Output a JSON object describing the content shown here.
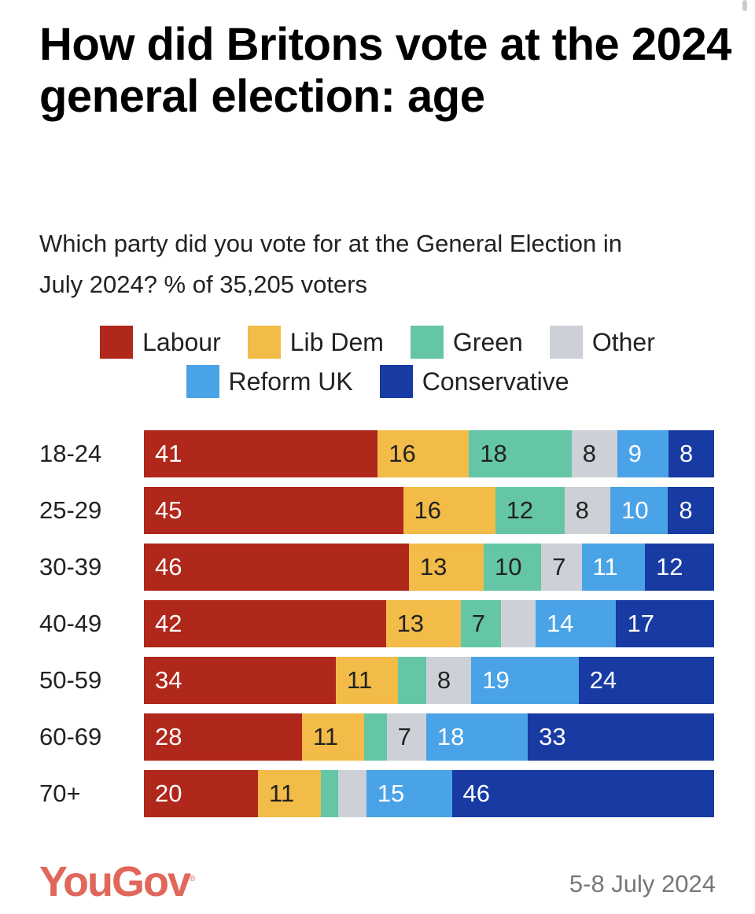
{
  "title": "How did Britons vote at the 2024 general election: age",
  "subtitle": "Which party did you vote for at the General Election in July 2024? % of 35,205 voters",
  "footer": {
    "logo": "YouGov",
    "date": "5-8 July 2024"
  },
  "chart_data": {
    "type": "bar",
    "orientation": "horizontal-stacked",
    "title": "How did Britons vote at the 2024 general election: age",
    "categories": [
      "18-24",
      "25-29",
      "30-39",
      "40-49",
      "50-59",
      "60-69",
      "70+"
    ],
    "series": [
      {
        "name": "Labour",
        "color": "#b0271b",
        "text_color": "#ffffff",
        "values": [
          41,
          45,
          46,
          42,
          34,
          28,
          20
        ],
        "labels": [
          "41",
          "45",
          "46",
          "42",
          "34",
          "28",
          "20"
        ]
      },
      {
        "name": "Lib Dem",
        "color": "#f3bb47",
        "text_color": "#222222",
        "values": [
          16,
          16,
          13,
          13,
          11,
          11,
          11
        ],
        "labels": [
          "16",
          "16",
          "13",
          "13",
          "11",
          "11",
          "11"
        ]
      },
      {
        "name": "Green",
        "color": "#65c6a6",
        "text_color": "#222222",
        "values": [
          18,
          12,
          10,
          7,
          5,
          4,
          3
        ],
        "labels": [
          "18",
          "12",
          "10",
          "7",
          "",
          "",
          ""
        ]
      },
      {
        "name": "Other",
        "color": "#cdd0d7",
        "text_color": "#222222",
        "values": [
          8,
          8,
          7,
          6,
          8,
          7,
          5
        ],
        "labels": [
          "8",
          "8",
          "7",
          "",
          "8",
          "7",
          ""
        ]
      },
      {
        "name": "Reform UK",
        "color": "#4aa3e6",
        "text_color": "#ffffff",
        "values": [
          9,
          10,
          11,
          14,
          19,
          18,
          15
        ],
        "labels": [
          "9",
          "10",
          "11",
          "14",
          "19",
          "18",
          "15"
        ]
      },
      {
        "name": "Conservative",
        "color": "#183aa3",
        "text_color": "#ffffff",
        "values": [
          8,
          8,
          12,
          17,
          24,
          33,
          46
        ],
        "labels": [
          "8",
          "8",
          "12",
          "17",
          "24",
          "33",
          "46"
        ]
      }
    ],
    "legend_rows": [
      [
        "Labour",
        "Lib Dem",
        "Green",
        "Other"
      ],
      [
        "Reform UK",
        "Conservative"
      ]
    ],
    "legend_placement": "top"
  }
}
